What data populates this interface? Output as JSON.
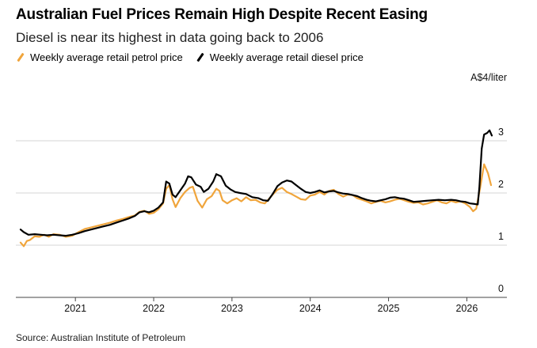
{
  "header": {
    "title": "Australian Fuel Prices Remain High Despite Recent Easing",
    "subtitle": "Diesel is near its highest in data going back to 2006"
  },
  "source": "Source: Australian Institute of Petroleum",
  "colors": {
    "petrol": "#f0a53c",
    "diesel": "#000000",
    "grid": "#d6d6d6",
    "axis": "#444444"
  },
  "chart_data": {
    "type": "line",
    "title": "Australian Fuel Prices Remain High Despite Recent Easing",
    "subtitle": "Diesel is near its highest in data going back to 2006",
    "ylabel": "A$4/liter",
    "unit_label": "A$4/liter",
    "ylim": [
      0,
      4
    ],
    "yticks": [
      0,
      1,
      2,
      3
    ],
    "xlim": [
      2020.3,
      2026.35
    ],
    "xticks": [
      2021,
      2022,
      2023,
      2024,
      2025,
      2026
    ],
    "xtick_labels": [
      "2021",
      "2022",
      "2023",
      "2024",
      "2025",
      "2026"
    ],
    "legend": [
      "Weekly average retail petrol price",
      "Weekly average retail diesel price"
    ],
    "series": [
      {
        "name": "Weekly average retail petrol price",
        "color": "#f0a53c",
        "points": [
          [
            2020.3,
            1.05
          ],
          [
            2020.34,
            0.98
          ],
          [
            2020.38,
            1.08
          ],
          [
            2020.42,
            1.1
          ],
          [
            2020.48,
            1.17
          ],
          [
            2020.54,
            1.16
          ],
          [
            2020.6,
            1.2
          ],
          [
            2020.66,
            1.16
          ],
          [
            2020.72,
            1.21
          ],
          [
            2020.8,
            1.2
          ],
          [
            2020.88,
            1.16
          ],
          [
            2020.96,
            1.18
          ],
          [
            2021.04,
            1.25
          ],
          [
            2021.12,
            1.31
          ],
          [
            2021.2,
            1.34
          ],
          [
            2021.28,
            1.37
          ],
          [
            2021.36,
            1.4
          ],
          [
            2021.44,
            1.43
          ],
          [
            2021.52,
            1.47
          ],
          [
            2021.6,
            1.5
          ],
          [
            2021.68,
            1.54
          ],
          [
            2021.76,
            1.57
          ],
          [
            2021.82,
            1.64
          ],
          [
            2021.88,
            1.66
          ],
          [
            2021.94,
            1.6
          ],
          [
            2022.0,
            1.62
          ],
          [
            2022.06,
            1.69
          ],
          [
            2022.12,
            1.8
          ],
          [
            2022.16,
            2.08
          ],
          [
            2022.2,
            2.15
          ],
          [
            2022.24,
            1.88
          ],
          [
            2022.28,
            1.73
          ],
          [
            2022.34,
            1.9
          ],
          [
            2022.4,
            2.02
          ],
          [
            2022.46,
            2.1
          ],
          [
            2022.5,
            2.12
          ],
          [
            2022.56,
            1.85
          ],
          [
            2022.62,
            1.72
          ],
          [
            2022.68,
            1.88
          ],
          [
            2022.74,
            1.94
          ],
          [
            2022.8,
            2.08
          ],
          [
            2022.84,
            2.04
          ],
          [
            2022.88,
            1.86
          ],
          [
            2022.94,
            1.8
          ],
          [
            2023.0,
            1.86
          ],
          [
            2023.06,
            1.9
          ],
          [
            2023.12,
            1.84
          ],
          [
            2023.18,
            1.92
          ],
          [
            2023.24,
            1.86
          ],
          [
            2023.3,
            1.87
          ],
          [
            2023.36,
            1.82
          ],
          [
            2023.42,
            1.8
          ],
          [
            2023.48,
            1.9
          ],
          [
            2023.52,
            1.97
          ],
          [
            2023.58,
            2.06
          ],
          [
            2023.64,
            2.1
          ],
          [
            2023.7,
            2.02
          ],
          [
            2023.76,
            1.98
          ],
          [
            2023.82,
            1.93
          ],
          [
            2023.88,
            1.88
          ],
          [
            2023.94,
            1.87
          ],
          [
            2024.0,
            1.95
          ],
          [
            2024.06,
            1.97
          ],
          [
            2024.12,
            2.02
          ],
          [
            2024.18,
            1.97
          ],
          [
            2024.24,
            2.04
          ],
          [
            2024.3,
            2.06
          ],
          [
            2024.36,
            1.98
          ],
          [
            2024.42,
            1.93
          ],
          [
            2024.48,
            1.97
          ],
          [
            2024.54,
            1.96
          ],
          [
            2024.6,
            1.9
          ],
          [
            2024.66,
            1.87
          ],
          [
            2024.72,
            1.84
          ],
          [
            2024.78,
            1.8
          ],
          [
            2024.84,
            1.83
          ],
          [
            2024.9,
            1.85
          ],
          [
            2024.96,
            1.82
          ],
          [
            2025.02,
            1.84
          ],
          [
            2025.08,
            1.87
          ],
          [
            2025.14,
            1.89
          ],
          [
            2025.2,
            1.86
          ],
          [
            2025.26,
            1.83
          ],
          [
            2025.32,
            1.81
          ],
          [
            2025.38,
            1.82
          ],
          [
            2025.44,
            1.78
          ],
          [
            2025.5,
            1.8
          ],
          [
            2025.56,
            1.83
          ],
          [
            2025.62,
            1.86
          ],
          [
            2025.68,
            1.82
          ],
          [
            2025.74,
            1.8
          ],
          [
            2025.8,
            1.85
          ],
          [
            2025.86,
            1.82
          ],
          [
            2025.92,
            1.84
          ],
          [
            2025.98,
            1.8
          ],
          [
            2026.04,
            1.73
          ],
          [
            2026.08,
            1.65
          ],
          [
            2026.12,
            1.7
          ],
          [
            2026.17,
            2.1
          ],
          [
            2026.22,
            2.55
          ],
          [
            2026.27,
            2.38
          ],
          [
            2026.31,
            2.15
          ]
        ]
      },
      {
        "name": "Weekly average retail diesel price",
        "color": "#000000",
        "points": [
          [
            2020.3,
            1.3
          ],
          [
            2020.34,
            1.25
          ],
          [
            2020.4,
            1.2
          ],
          [
            2020.48,
            1.21
          ],
          [
            2020.56,
            1.2
          ],
          [
            2020.64,
            1.19
          ],
          [
            2020.72,
            1.2
          ],
          [
            2020.8,
            1.19
          ],
          [
            2020.88,
            1.18
          ],
          [
            2020.96,
            1.2
          ],
          [
            2021.04,
            1.23
          ],
          [
            2021.12,
            1.27
          ],
          [
            2021.2,
            1.3
          ],
          [
            2021.28,
            1.33
          ],
          [
            2021.36,
            1.36
          ],
          [
            2021.44,
            1.39
          ],
          [
            2021.52,
            1.43
          ],
          [
            2021.6,
            1.47
          ],
          [
            2021.68,
            1.51
          ],
          [
            2021.76,
            1.56
          ],
          [
            2021.82,
            1.63
          ],
          [
            2021.88,
            1.65
          ],
          [
            2021.94,
            1.63
          ],
          [
            2022.0,
            1.66
          ],
          [
            2022.06,
            1.72
          ],
          [
            2022.12,
            1.82
          ],
          [
            2022.16,
            2.22
          ],
          [
            2022.2,
            2.18
          ],
          [
            2022.24,
            1.97
          ],
          [
            2022.28,
            1.92
          ],
          [
            2022.34,
            2.05
          ],
          [
            2022.4,
            2.18
          ],
          [
            2022.44,
            2.32
          ],
          [
            2022.48,
            2.3
          ],
          [
            2022.54,
            2.16
          ],
          [
            2022.6,
            2.12
          ],
          [
            2022.64,
            2.02
          ],
          [
            2022.7,
            2.08
          ],
          [
            2022.76,
            2.22
          ],
          [
            2022.8,
            2.36
          ],
          [
            2022.86,
            2.32
          ],
          [
            2022.92,
            2.14
          ],
          [
            2022.98,
            2.07
          ],
          [
            2023.04,
            2.02
          ],
          [
            2023.1,
            2.0
          ],
          [
            2023.18,
            1.98
          ],
          [
            2023.26,
            1.92
          ],
          [
            2023.34,
            1.9
          ],
          [
            2023.4,
            1.86
          ],
          [
            2023.46,
            1.85
          ],
          [
            2023.52,
            1.98
          ],
          [
            2023.58,
            2.13
          ],
          [
            2023.64,
            2.2
          ],
          [
            2023.7,
            2.24
          ],
          [
            2023.76,
            2.22
          ],
          [
            2023.82,
            2.15
          ],
          [
            2023.88,
            2.08
          ],
          [
            2023.94,
            2.02
          ],
          [
            2024.0,
            2.0
          ],
          [
            2024.06,
            2.02
          ],
          [
            2024.12,
            2.05
          ],
          [
            2024.18,
            2.01
          ],
          [
            2024.24,
            2.03
          ],
          [
            2024.3,
            2.04
          ],
          [
            2024.36,
            2.01
          ],
          [
            2024.42,
            1.99
          ],
          [
            2024.48,
            1.98
          ],
          [
            2024.54,
            1.96
          ],
          [
            2024.6,
            1.94
          ],
          [
            2024.66,
            1.9
          ],
          [
            2024.72,
            1.87
          ],
          [
            2024.78,
            1.85
          ],
          [
            2024.84,
            1.84
          ],
          [
            2024.9,
            1.86
          ],
          [
            2024.96,
            1.88
          ],
          [
            2025.02,
            1.91
          ],
          [
            2025.08,
            1.92
          ],
          [
            2025.14,
            1.9
          ],
          [
            2025.2,
            1.89
          ],
          [
            2025.26,
            1.86
          ],
          [
            2025.32,
            1.83
          ],
          [
            2025.4,
            1.84
          ],
          [
            2025.48,
            1.85
          ],
          [
            2025.56,
            1.86
          ],
          [
            2025.64,
            1.87
          ],
          [
            2025.72,
            1.86
          ],
          [
            2025.8,
            1.87
          ],
          [
            2025.86,
            1.86
          ],
          [
            2025.92,
            1.84
          ],
          [
            2025.98,
            1.83
          ],
          [
            2026.04,
            1.8
          ],
          [
            2026.1,
            1.79
          ],
          [
            2026.14,
            1.78
          ],
          [
            2026.16,
            2.1
          ],
          [
            2026.19,
            2.85
          ],
          [
            2026.22,
            3.12
          ],
          [
            2026.26,
            3.15
          ],
          [
            2026.29,
            3.2
          ],
          [
            2026.32,
            3.1
          ]
        ]
      }
    ]
  }
}
